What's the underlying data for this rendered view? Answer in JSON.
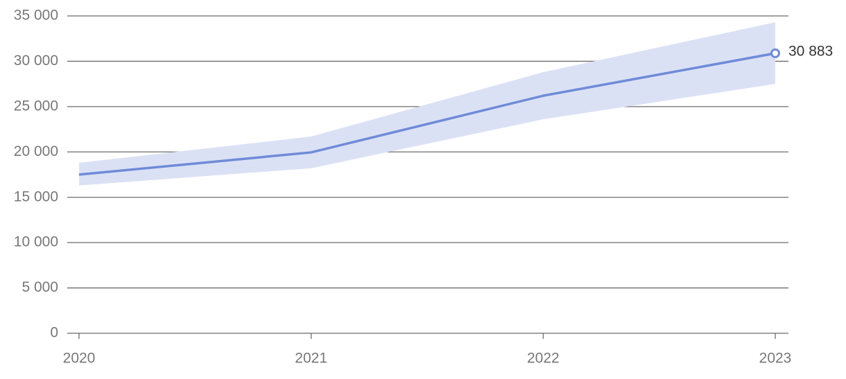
{
  "chart_data": {
    "type": "line",
    "categories": [
      "2020",
      "2021",
      "2022",
      "2023"
    ],
    "values": [
      17500,
      19950,
      26200,
      30883
    ],
    "value_labels": [
      null,
      null,
      null,
      "30 883"
    ],
    "color": "#6f8bd8",
    "band": {
      "lower": [
        16300,
        18200,
        23600,
        27500
      ],
      "upper": [
        18800,
        21700,
        28800,
        34300
      ],
      "color": "#dbe1f5"
    },
    "ylim": [
      0,
      35000
    ],
    "yticks": [
      0,
      {
        "value": 5000,
        "label": "5 000"
      },
      {
        "value": 10000,
        "label": "10 000"
      },
      {
        "value": 15000,
        "label": "15 000"
      },
      {
        "value": 20000,
        "label": "20 000"
      },
      {
        "value": 25000,
        "label": "25 000"
      },
      {
        "value": 30000,
        "label": "30 000"
      },
      {
        "value": 35000,
        "label": "35 000"
      }
    ],
    "grid": true
  }
}
